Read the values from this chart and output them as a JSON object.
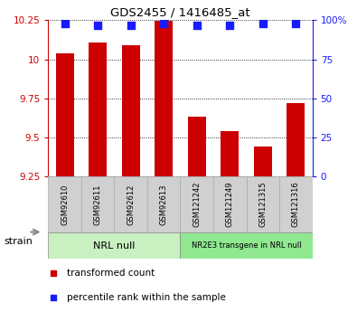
{
  "title": "GDS2455 / 1416485_at",
  "samples": [
    "GSM92610",
    "GSM92611",
    "GSM92612",
    "GSM92613",
    "GSM121242",
    "GSM121249",
    "GSM121315",
    "GSM121316"
  ],
  "transformed_counts": [
    10.04,
    10.11,
    10.09,
    10.245,
    9.63,
    9.54,
    9.44,
    9.72
  ],
  "percentile_ranks": [
    98,
    97,
    97,
    98,
    97,
    97,
    98,
    98
  ],
  "ylim_left": [
    9.25,
    10.25
  ],
  "ylim_right": [
    0,
    100
  ],
  "yticks_left": [
    9.25,
    9.5,
    9.75,
    10.0,
    10.25
  ],
  "yticks_right": [
    0,
    25,
    50,
    75,
    100
  ],
  "ytick_labels_left": [
    "9.25",
    "9.5",
    "9.75",
    "10",
    "10.25"
  ],
  "ytick_labels_right": [
    "0",
    "25",
    "50",
    "75",
    "100%"
  ],
  "groups": [
    {
      "label": "NRL null",
      "start": 0,
      "end": 3,
      "color": "#c8f0c0"
    },
    {
      "label": "NR2E3 transgene in NRL null",
      "start": 4,
      "end": 7,
      "color": "#90e890"
    }
  ],
  "bar_color": "#cc0000",
  "dot_color": "#1a1aff",
  "background_color": "#ffffff",
  "tick_label_color_left": "#cc0000",
  "tick_label_color_right": "#1a1aff",
  "bar_width": 0.55,
  "dot_size": 28,
  "legend_items": [
    {
      "label": "transformed count",
      "color": "#cc0000"
    },
    {
      "label": "percentile rank within the sample",
      "color": "#1a1aff"
    }
  ],
  "strain_label": "strain",
  "sample_box_color": "#d0d0d0",
  "sample_box_edge_color": "#aaaaaa",
  "group_border_color": "#888888"
}
